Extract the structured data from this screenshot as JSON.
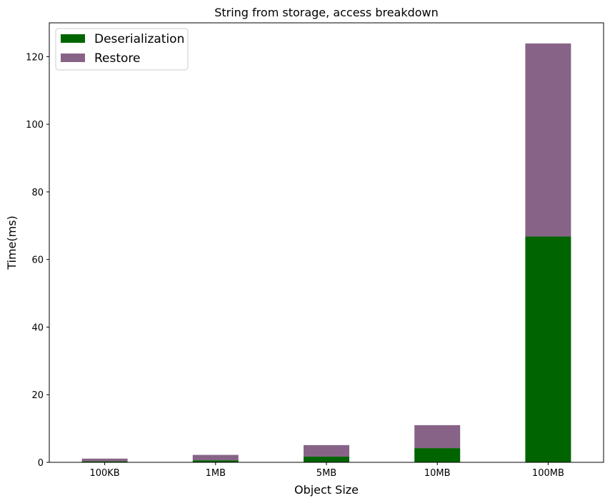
{
  "chart_data": {
    "type": "bar",
    "stacked": true,
    "title": "String from storage, access breakdown",
    "xlabel": "Object Size",
    "ylabel": "Time(ms)",
    "categories": [
      "100KB",
      "1MB",
      "5MB",
      "10MB",
      "100MB"
    ],
    "series": [
      {
        "name": "Deserialization",
        "values": [
          0.3,
          0.6,
          1.7,
          4.2,
          66.8
        ],
        "color": "#006400"
      },
      {
        "name": "Restore",
        "values": [
          0.8,
          1.6,
          3.4,
          6.8,
          57.1
        ],
        "color": "#876487"
      }
    ],
    "ylim": [
      0,
      130
    ],
    "yticks": [
      0,
      20,
      40,
      60,
      80,
      100,
      120
    ],
    "grid": false,
    "legend_position": "top-left"
  }
}
